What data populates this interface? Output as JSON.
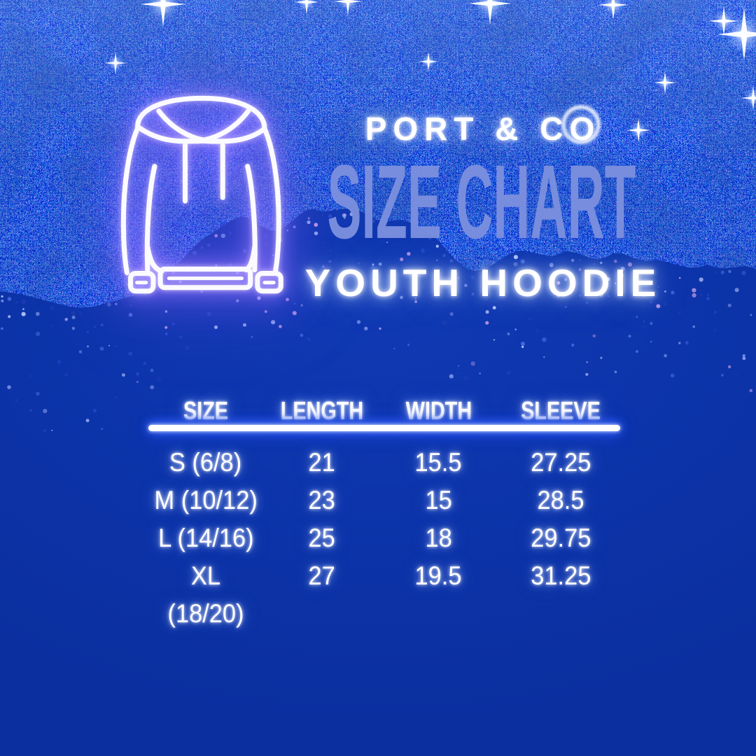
{
  "poster": {
    "brand": "PORT & CO",
    "title": "SIZE CHART",
    "subtitle": "YOUTH HOODIE"
  },
  "chart_data": {
    "type": "table",
    "title": "SIZE CHART",
    "brand": "PORT & CO",
    "product": "YOUTH HOODIE",
    "columns": [
      "SIZE",
      "LENGTH",
      "WIDTH",
      "SLEEVE"
    ],
    "rows": [
      [
        "S (6/8)",
        "21",
        "15.5",
        "27.25"
      ],
      [
        "M (10/12)",
        "23",
        "15",
        "28.5"
      ],
      [
        "L (14/16)",
        "25",
        "18",
        "29.75"
      ],
      [
        "XL (18/20)",
        "27",
        "19.5",
        "31.25"
      ]
    ]
  },
  "icons": {
    "hoodie": "hoodie-neon-outline-icon",
    "sparkles": "sparkle-star-icon"
  },
  "colors": {
    "background": "#0c33a8",
    "title_text": "#7b8fde",
    "body_text": "#ffffff",
    "divider": "#ffffff",
    "divider_glow": "#2a55f0",
    "hoodie_glow": "#8b76ff",
    "glitter_deep": "#0a1b66"
  }
}
